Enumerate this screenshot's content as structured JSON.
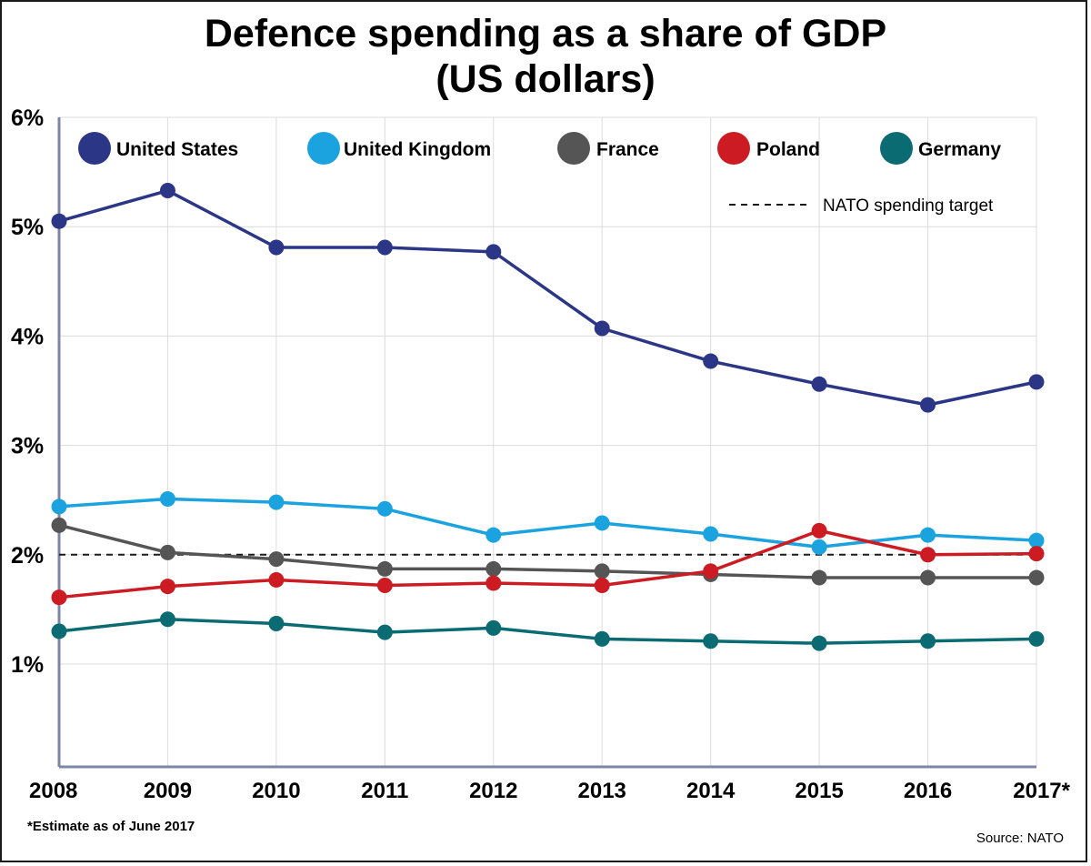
{
  "title": {
    "line1": "Defence spending as a share of GDP",
    "line2": "(US dollars)"
  },
  "footnote": "*Estimate as of June 2017",
  "source": "Source: NATO",
  "chart_data": {
    "type": "line",
    "title": "Defence spending as a share of GDP (US dollars)",
    "x": [
      "2008",
      "2009",
      "2010",
      "2011",
      "2012",
      "2013",
      "2014",
      "2015",
      "2016",
      "2017*"
    ],
    "y_ticks": [
      {
        "value": 1,
        "label": "1%"
      },
      {
        "value": 2,
        "label": "2%"
      },
      {
        "value": 3,
        "label": "3%"
      },
      {
        "value": 4,
        "label": "4%"
      },
      {
        "value": 5,
        "label": "5%"
      },
      {
        "value": 6,
        "label": "6%"
      }
    ],
    "ylim": [
      0.06,
      6
    ],
    "grid": true,
    "legend_position": "top",
    "series": [
      {
        "name": "United States",
        "color": "#2b3686",
        "values": [
          5.05,
          5.33,
          4.81,
          4.81,
          4.77,
          4.07,
          3.77,
          3.56,
          3.37,
          3.58
        ]
      },
      {
        "name": "United Kingdom",
        "color": "#1ba3e0",
        "values": [
          2.44,
          2.51,
          2.48,
          2.42,
          2.18,
          2.29,
          2.19,
          2.07,
          2.18,
          2.13
        ]
      },
      {
        "name": "France",
        "color": "#555555",
        "values": [
          2.27,
          2.02,
          1.96,
          1.87,
          1.87,
          1.85,
          1.82,
          1.79,
          1.79,
          1.79
        ]
      },
      {
        "name": "Poland",
        "color": "#cc1b22",
        "values": [
          1.61,
          1.71,
          1.77,
          1.72,
          1.74,
          1.72,
          1.85,
          2.22,
          2.0,
          2.01
        ]
      },
      {
        "name": "Germany",
        "color": "#0a6b73",
        "values": [
          1.3,
          1.41,
          1.37,
          1.29,
          1.33,
          1.23,
          1.21,
          1.19,
          1.21,
          1.23
        ]
      }
    ],
    "reference_line": {
      "name": "NATO spending target",
      "value": 2,
      "style": "dashed",
      "color": "#1a1a1a"
    }
  }
}
